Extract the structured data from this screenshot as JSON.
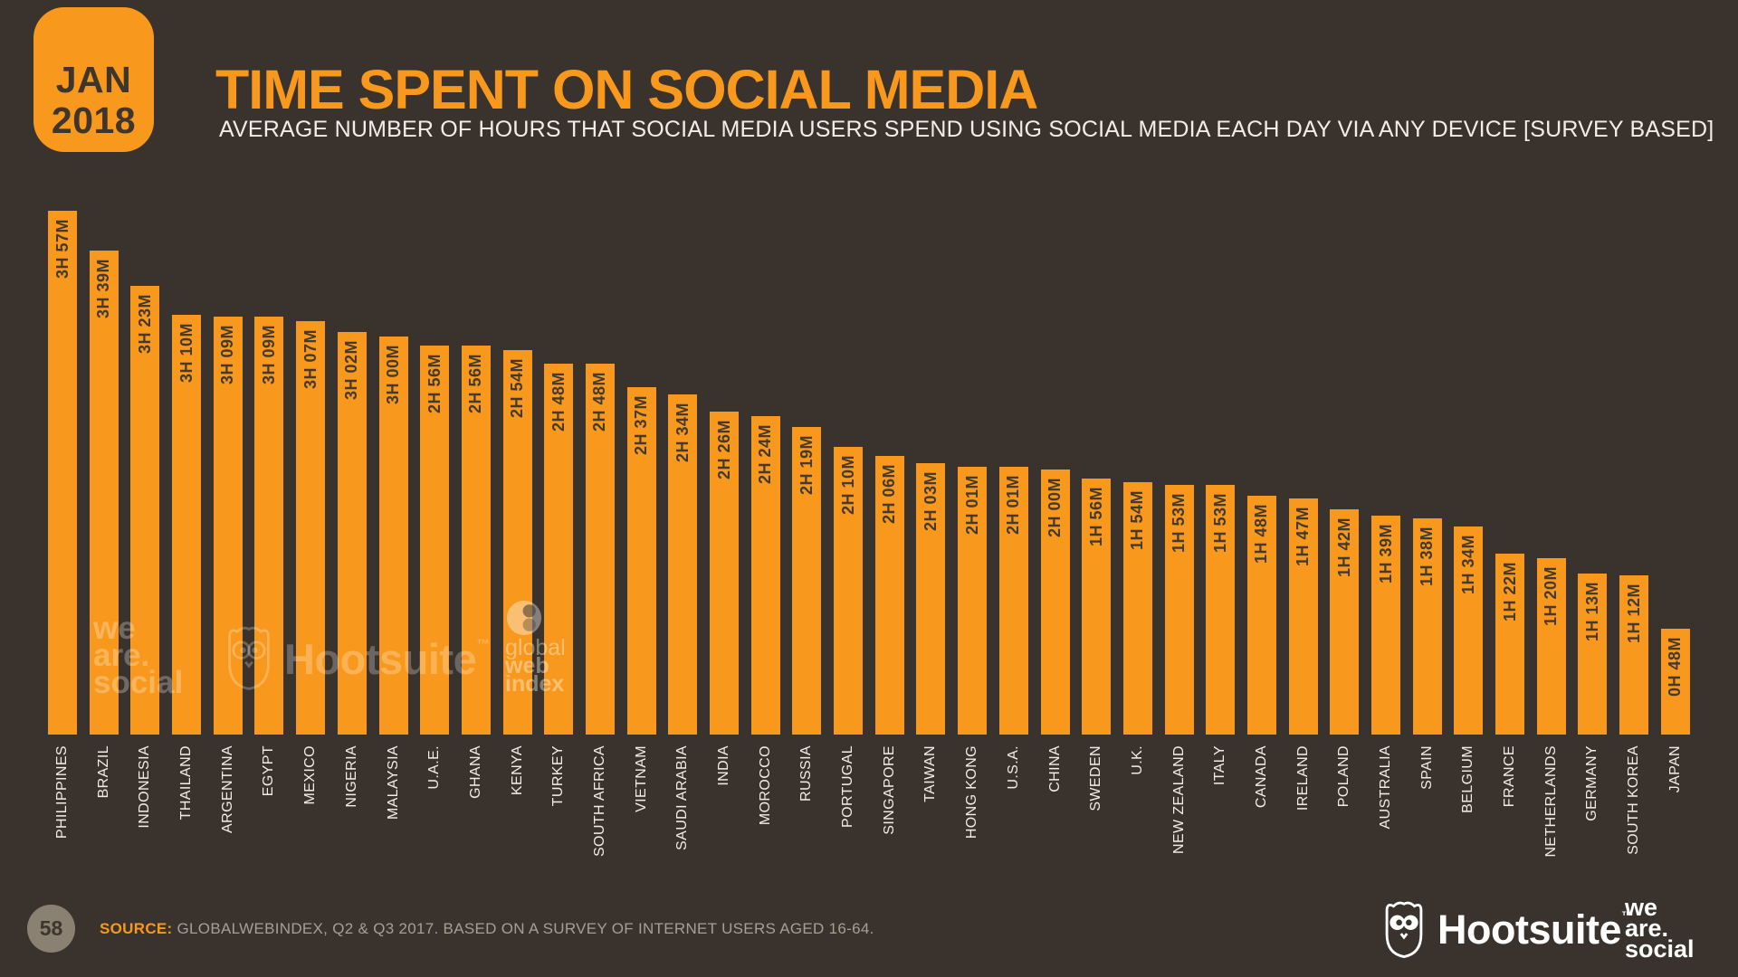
{
  "slide": {
    "date_line1": "JAN",
    "date_line2": "2018",
    "title": "TIME SPENT ON SOCIAL MEDIA",
    "subtitle": "AVERAGE NUMBER OF HOURS THAT SOCIAL MEDIA USERS SPEND USING SOCIAL MEDIA EACH DAY VIA ANY DEVICE [SURVEY BASED]"
  },
  "colors": {
    "background": "#3A332D",
    "accent_orange": "#F8981D",
    "bar_value_text": "#43392C",
    "country_label_text": "#F2EDE6",
    "source_text_gray": "#A89E92",
    "page_circle_gray": "#8A8173"
  },
  "watermarks": {
    "we_are_social_lines": [
      "we",
      "are.",
      "social"
    ],
    "hootsuite_label": "Hootsuite",
    "tm": "™",
    "globalwebindex_lines": [
      "global",
      "web",
      "index"
    ]
  },
  "footer": {
    "page_number": "58",
    "source_label": "SOURCE:",
    "source_text": "GLOBALWEBINDEX, Q2 & Q3 2017. BASED ON A SURVEY OF INTERNET USERS AGED 16-64.",
    "hootsuite_label": "Hootsuite",
    "tm": "™",
    "we_are_social_lines": [
      "we",
      "are.",
      "social"
    ]
  },
  "chart_data": {
    "type": "bar",
    "title": "TIME SPENT ON SOCIAL MEDIA",
    "subtitle": "AVERAGE NUMBER OF HOURS THAT SOCIAL MEDIA USERS SPEND USING SOCIAL MEDIA EACH DAY VIA ANY DEVICE [SURVEY BASED]",
    "unit": "hours and minutes per day",
    "ylim_minutes": [
      0,
      240
    ],
    "grid": false,
    "legend": false,
    "bar_color": "#F8981D",
    "categories": [
      "PHILIPPINES",
      "BRAZIL",
      "INDONESIA",
      "THAILAND",
      "ARGENTINA",
      "EGYPT",
      "MEXICO",
      "NIGERIA",
      "MALAYSIA",
      "U.A.E.",
      "GHANA",
      "KENYA",
      "TURKEY",
      "SOUTH AFRICA",
      "VIETNAM",
      "SAUDI ARABIA",
      "INDIA",
      "MOROCCO",
      "RUSSIA",
      "PORTUGAL",
      "SINGAPORE",
      "TAIWAN",
      "HONG KONG",
      "U.S.A.",
      "CHINA",
      "SWEDEN",
      "U.K.",
      "NEW ZEALAND",
      "ITALY",
      "CANADA",
      "IRELAND",
      "POLAND",
      "AUSTRALIA",
      "SPAIN",
      "BELGIUM",
      "FRANCE",
      "NETHERLANDS",
      "GERMANY",
      "SOUTH KOREA",
      "JAPAN"
    ],
    "labels": [
      "3H 57M",
      "3H 39M",
      "3H 23M",
      "3H 10M",
      "3H 09M",
      "3H 09M",
      "3H 07M",
      "3H 02M",
      "3H 00M",
      "2H 56M",
      "2H 56M",
      "2H 54M",
      "2H 48M",
      "2H 48M",
      "2H 37M",
      "2H 34M",
      "2H 26M",
      "2H 24M",
      "2H 19M",
      "2H 10M",
      "2H 06M",
      "2H 03M",
      "2H 01M",
      "2H 01M",
      "2H 00M",
      "1H 56M",
      "1H 54M",
      "1H 53M",
      "1H 53M",
      "1H 48M",
      "1H 47M",
      "1H 42M",
      "1H 39M",
      "1H 38M",
      "1H 34M",
      "1H 22M",
      "1H 20M",
      "1H 13M",
      "1H 12M",
      "0H 48M"
    ],
    "values_minutes": [
      237,
      219,
      203,
      190,
      189,
      189,
      187,
      182,
      180,
      176,
      176,
      174,
      168,
      168,
      157,
      154,
      146,
      144,
      139,
      130,
      126,
      123,
      121,
      121,
      120,
      116,
      114,
      113,
      113,
      108,
      107,
      102,
      99,
      98,
      94,
      82,
      80,
      73,
      72,
      48
    ]
  }
}
